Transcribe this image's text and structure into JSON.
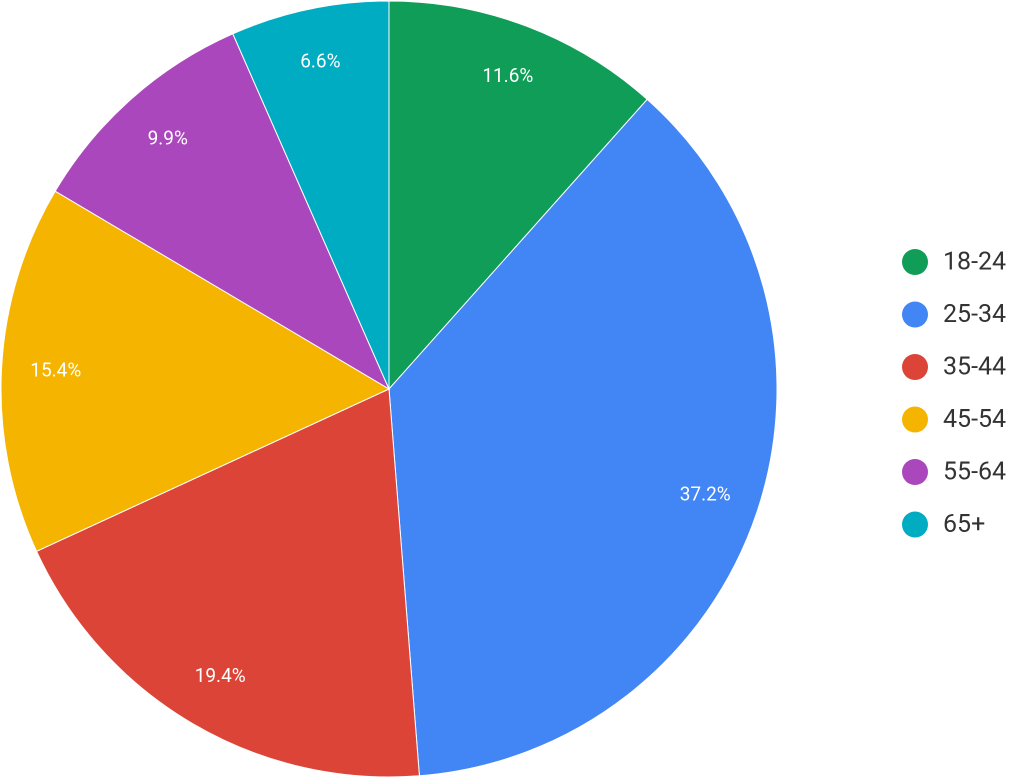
{
  "chart_data": {
    "type": "pie",
    "categories": [
      "18-24",
      "25-34",
      "35-44",
      "45-54",
      "55-64",
      "65+"
    ],
    "values": [
      11.6,
      37.2,
      19.4,
      15.4,
      9.9,
      6.6
    ],
    "value_labels": [
      "11.6%",
      "37.2%",
      "19.4%",
      "15.4%",
      "9.9%",
      "6.6%"
    ],
    "colors": [
      "#0f9d58",
      "#4285f4",
      "#db4437",
      "#f4b400",
      "#ab47bc",
      "#00acc1"
    ],
    "legend": "right"
  }
}
